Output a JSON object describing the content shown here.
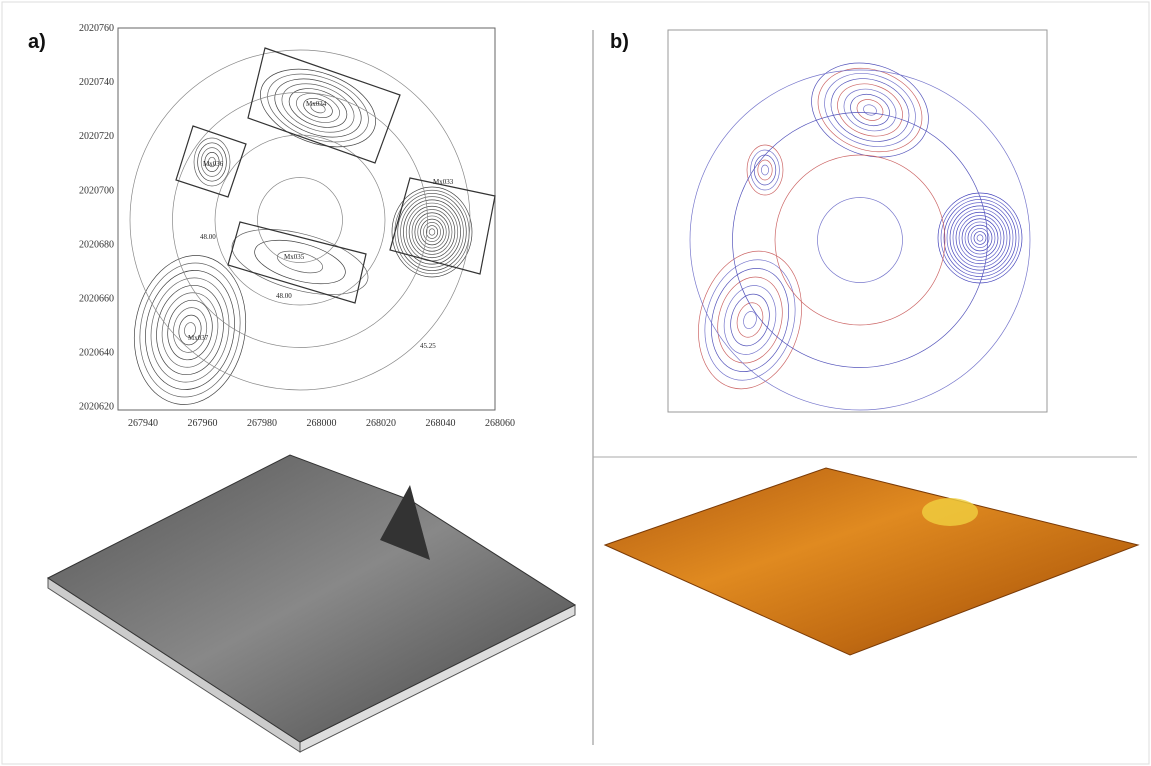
{
  "panel_a": {
    "label": "a)",
    "y_labels": [
      "2020760",
      "2020740",
      "2020720",
      "2020700",
      "2020680",
      "2020660",
      "2020640",
      "2020620"
    ],
    "x_labels": [
      "267940",
      "267960",
      "267980",
      "268000",
      "268020",
      "268040",
      "268060"
    ],
    "zones": [
      "Mx034",
      "Mx036",
      "Mx033",
      "Mx035",
      "Mx037"
    ],
    "contour_labels": [
      "48.00",
      "48.00",
      "45.25"
    ]
  },
  "panel_b": {
    "label": "b)"
  }
}
